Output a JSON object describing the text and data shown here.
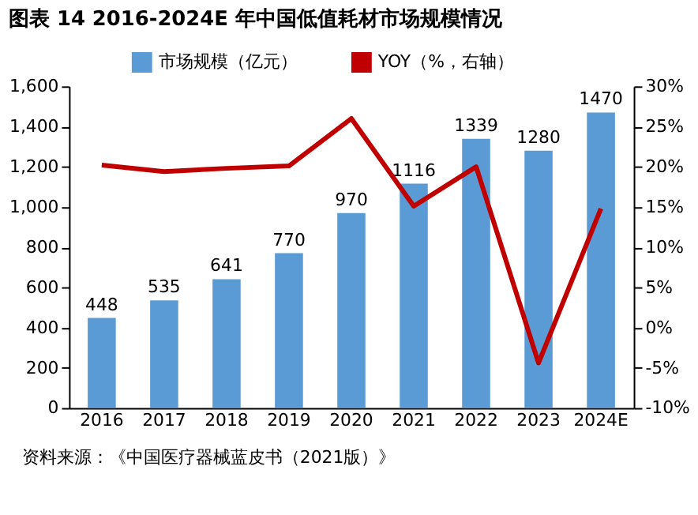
{
  "chart_data": {
    "type": "bar",
    "title": "图表 14 2016-2024E 年中国低值耗材市场规模情况",
    "categories": [
      "2016",
      "2017",
      "2018",
      "2019",
      "2020",
      "2021",
      "2022",
      "2023",
      "2024E"
    ],
    "series": [
      {
        "name": "市场规模（亿元）",
        "color": "#5b9bd5",
        "values": [
          448,
          535,
          641,
          770,
          970,
          1116,
          1339,
          1280,
          1470
        ],
        "value_labels": [
          "448",
          "535",
          "641",
          "770",
          "970",
          "1116",
          "1339",
          "1280",
          "1470"
        ]
      },
      {
        "name": "YOY（%，右轴）",
        "type": "line",
        "axis": "y2",
        "color": "#c00000",
        "values": [
          20.2,
          19.4,
          19.8,
          20.1,
          26.0,
          15.1,
          20.0,
          -4.4,
          14.8
        ]
      }
    ],
    "ylim": [
      0,
      1600
    ],
    "yticks": [
      0,
      200,
      400,
      600,
      800,
      {
        "value": 1000,
        "label": "1,000"
      },
      {
        "value": 1200,
        "label": "1,200"
      },
      {
        "value": 1400,
        "label": "1,400"
      },
      {
        "value": 1600,
        "label": "1,600"
      }
    ],
    "y2lim": [
      -10,
      30
    ],
    "y2ticks": [
      {
        "value": -10,
        "label": "-10%"
      },
      {
        "value": -5,
        "label": "-5%"
      },
      {
        "value": 0,
        "label": "0%"
      },
      {
        "value": 5,
        "label": "5%"
      },
      {
        "value": 10,
        "label": "10%"
      },
      {
        "value": 15,
        "label": "15%"
      },
      {
        "value": 20,
        "label": "20%"
      },
      {
        "value": 25,
        "label": "25%"
      },
      {
        "value": 30,
        "label": "30%"
      }
    ],
    "legend": "top",
    "grid": false,
    "annotations": [
      "资料来源：《中国医疗器械蓝皮书（2021版）》"
    ]
  }
}
